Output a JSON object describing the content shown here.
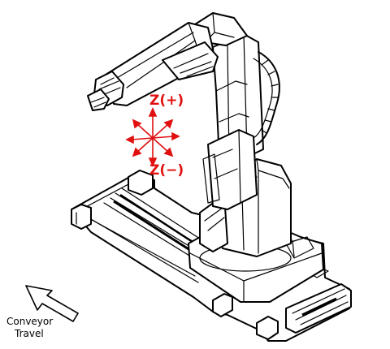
{
  "labels": {
    "z_plus": "Z(+)",
    "z_minus": "Z(−)",
    "conveyor_line1": "Conveyor",
    "conveyor_line2": "Travel"
  },
  "colors": {
    "axis_red": "#e01010",
    "line_black": "#000000",
    "background": "#ffffff"
  },
  "icons": {
    "axis_symbol": "six-direction-axis-arrows",
    "conveyor_direction": "outline-arrow-up-left"
  }
}
